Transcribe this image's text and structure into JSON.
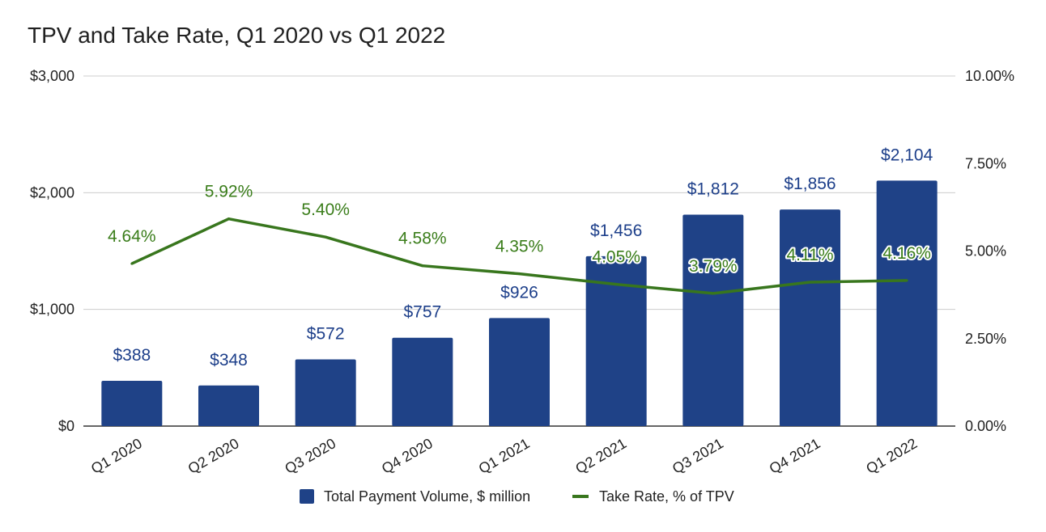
{
  "chart_data": {
    "type": "bar",
    "title": "TPV and Take Rate, Q1 2020 vs Q1 2022",
    "categories": [
      "Q1 2020",
      "Q2 2020",
      "Q3 2020",
      "Q4 2020",
      "Q1 2021",
      "Q2 2021",
      "Q3 2021",
      "Q4 2021",
      "Q1 2022"
    ],
    "series": [
      {
        "name": "Total Payment Volume, $ million",
        "type": "bar",
        "axis": "left",
        "color": "#1f4287",
        "values": [
          388,
          348,
          572,
          757,
          926,
          1456,
          1812,
          1856,
          2104
        ],
        "labels": [
          "$388",
          "$348",
          "$572",
          "$757",
          "$926",
          "$1,456",
          "$1,812",
          "$1,856",
          "$2,104"
        ]
      },
      {
        "name": "Take Rate, % of TPV",
        "type": "line",
        "axis": "right",
        "color": "#38761d",
        "values": [
          4.64,
          5.92,
          5.4,
          4.58,
          4.35,
          4.05,
          3.79,
          4.11,
          4.16
        ],
        "labels": [
          "4.64%",
          "5.92%",
          "5.40%",
          "4.58%",
          "4.35%",
          "4.05%",
          "3.79%",
          "4.11%",
          "4.16%"
        ]
      }
    ],
    "y_left": {
      "min": 0,
      "max": 3000,
      "ticks": [
        0,
        1000,
        2000,
        3000
      ],
      "tick_labels": [
        "$0",
        "$1,000",
        "$2,000",
        "$3,000"
      ]
    },
    "y_right": {
      "min": 0,
      "max": 10,
      "ticks": [
        0,
        2.5,
        5,
        7.5,
        10
      ],
      "tick_labels": [
        "0.00%",
        "2.50%",
        "5.00%",
        "7.50%",
        "10.00%"
      ]
    },
    "xlabel": "",
    "ylabel": "",
    "grid": true,
    "legend": "bottom-center"
  }
}
